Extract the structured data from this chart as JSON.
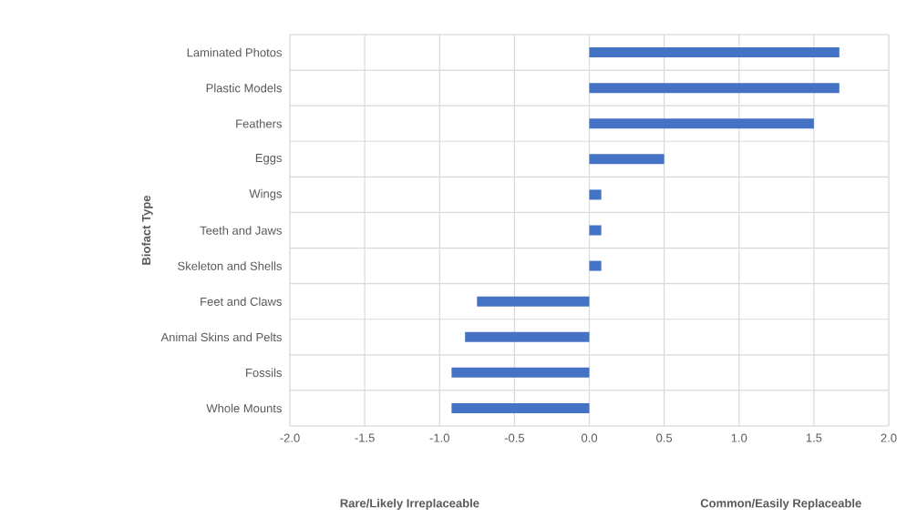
{
  "chart_data": {
    "type": "bar",
    "orientation": "horizontal",
    "ylabel": "Biofact Type",
    "categories": [
      "Laminated Photos",
      "Plastic Models",
      "Feathers",
      "Eggs",
      "Wings",
      "Teeth and Jaws",
      "Skeleton and Shells",
      "Feet and Claws",
      "Animal Skins and Pelts",
      "Fossils",
      "Whole Mounts"
    ],
    "values": [
      1.67,
      1.67,
      1.5,
      0.5,
      0.08,
      0.08,
      0.08,
      -0.75,
      -0.83,
      -0.92,
      -0.92
    ],
    "color": "#4472c4",
    "xlim": [
      -2,
      2
    ],
    "xticks": [
      {
        "value": -2,
        "label": "-2.0"
      },
      {
        "value": -1.5,
        "label": "-1.5"
      },
      {
        "value": -1,
        "label": "-1.0"
      },
      {
        "value": -0.5,
        "label": "-0.5"
      },
      {
        "value": 0,
        "label": "0.0"
      },
      {
        "value": 0.5,
        "label": "0.5"
      },
      {
        "value": 1,
        "label": "1.0"
      },
      {
        "value": 1.5,
        "label": "1.5"
      },
      {
        "value": 2,
        "label": "2.0"
      }
    ],
    "grid": true,
    "annotations": [
      "Rare/Likely Irreplaceable",
      "Common/Easily Replaceable"
    ]
  }
}
